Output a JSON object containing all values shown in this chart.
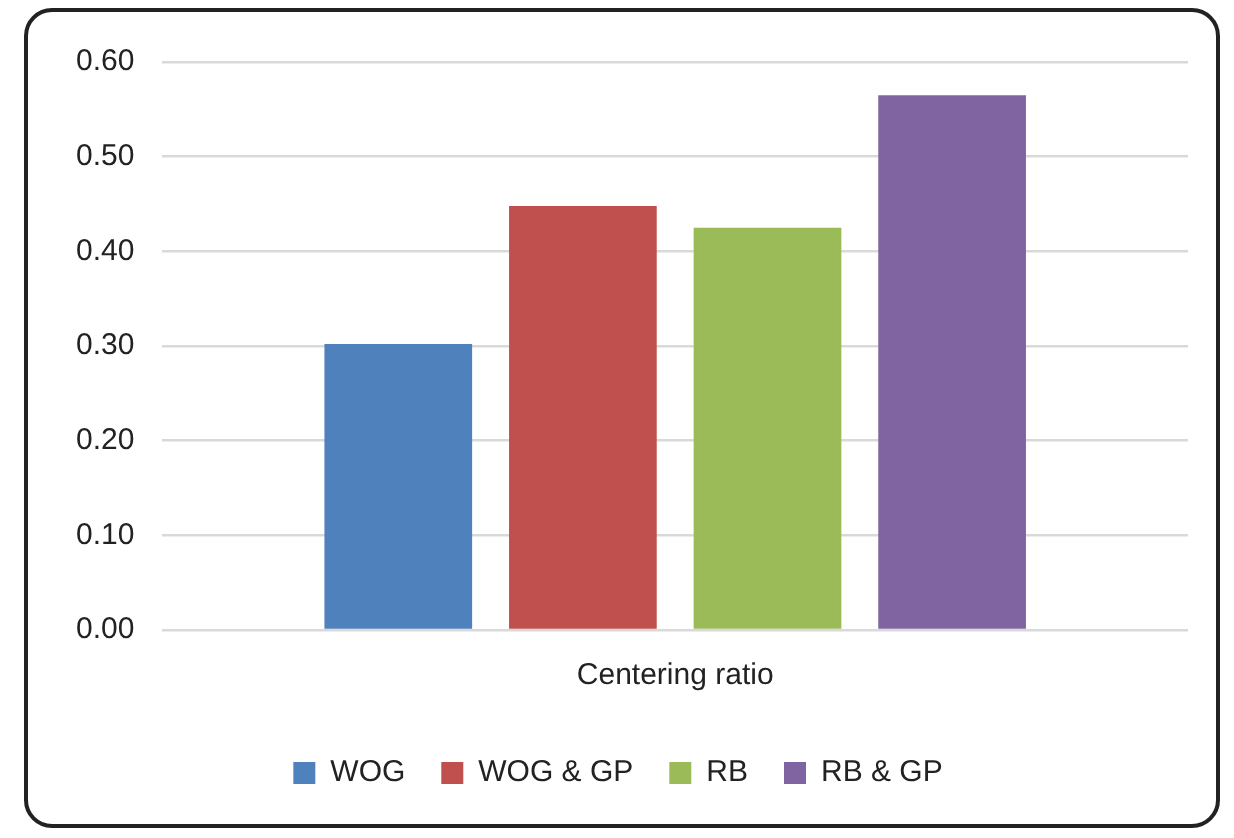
{
  "chart_data": {
    "type": "bar",
    "categories": [
      "Centering ratio"
    ],
    "series": [
      {
        "name": "WOG",
        "color": "#4f81bd",
        "values": [
          0.302
        ]
      },
      {
        "name": "WOG & GP",
        "color": "#c0504d",
        "values": [
          0.448
        ]
      },
      {
        "name": "RB",
        "color": "#9bbb59",
        "values": [
          0.425
        ]
      },
      {
        "name": "RB & GP",
        "color": "#8064a2",
        "values": [
          0.565
        ]
      }
    ],
    "ylim": [
      0,
      0.6
    ],
    "yticks": [
      {
        "value": 0,
        "label": "0.00"
      },
      {
        "value": 0.1,
        "label": "0.10"
      },
      {
        "value": 0.2,
        "label": "0.20"
      },
      {
        "value": 0.3,
        "label": "0.30"
      },
      {
        "value": 0.4,
        "label": "0.40"
      },
      {
        "value": 0.5,
        "label": "0.50"
      },
      {
        "value": 0.6,
        "label": "0.60"
      }
    ],
    "grid": "y",
    "legend": "bottom"
  }
}
